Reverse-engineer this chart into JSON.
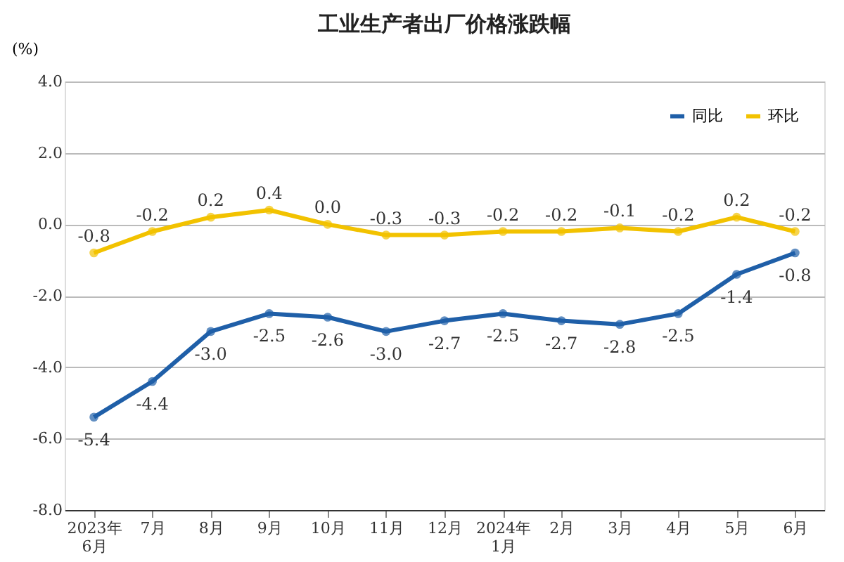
{
  "chart_data": {
    "type": "line",
    "title": "工业生产者出厂价格涨跌幅",
    "ylabel": "(%)",
    "categories": [
      "2023年6月",
      "7月",
      "8月",
      "9月",
      "10月",
      "11月",
      "12月",
      "2024年1月",
      "2月",
      "3月",
      "4月",
      "5月",
      "6月"
    ],
    "series": [
      {
        "name": "同比",
        "color": "#1f5fa8",
        "values": [
          -5.4,
          -4.4,
          -3.0,
          -2.5,
          -2.6,
          -3.0,
          -2.7,
          -2.5,
          -2.7,
          -2.8,
          -2.5,
          -1.4,
          -0.8
        ],
        "value_labels": [
          "-5.4",
          "-4.4",
          "-3.0",
          "-2.5",
          "-2.6",
          "-3.0",
          "-2.7",
          "-2.5",
          "-2.7",
          "-2.8",
          "-2.5",
          "-1.4",
          "-0.8"
        ]
      },
      {
        "name": "环比",
        "color": "#f2c200",
        "values": [
          -0.8,
          -0.2,
          0.2,
          0.4,
          0.0,
          -0.3,
          -0.3,
          -0.2,
          -0.2,
          -0.1,
          -0.2,
          0.2,
          -0.2
        ],
        "value_labels": [
          "-0.8",
          "-0.2",
          "0.2",
          "0.4",
          "0.0",
          "-0.3",
          "-0.3",
          "-0.2",
          "-0.2",
          "-0.1",
          "-0.2",
          "0.2",
          "-0.2"
        ]
      }
    ],
    "ylim": [
      -8,
      4
    ],
    "yticks": [
      {
        "value": -8,
        "label": "-8.0"
      },
      {
        "value": -6,
        "label": "-6.0"
      },
      {
        "value": -4,
        "label": "-4.0"
      },
      {
        "value": -2,
        "label": "-2.0"
      },
      {
        "value": 0,
        "label": "0.0"
      },
      {
        "value": 2,
        "label": "2.0"
      },
      {
        "value": 4,
        "label": "4.0"
      }
    ],
    "grid": "y",
    "legend": "top right",
    "marker": "circle",
    "line_style": "solid"
  }
}
